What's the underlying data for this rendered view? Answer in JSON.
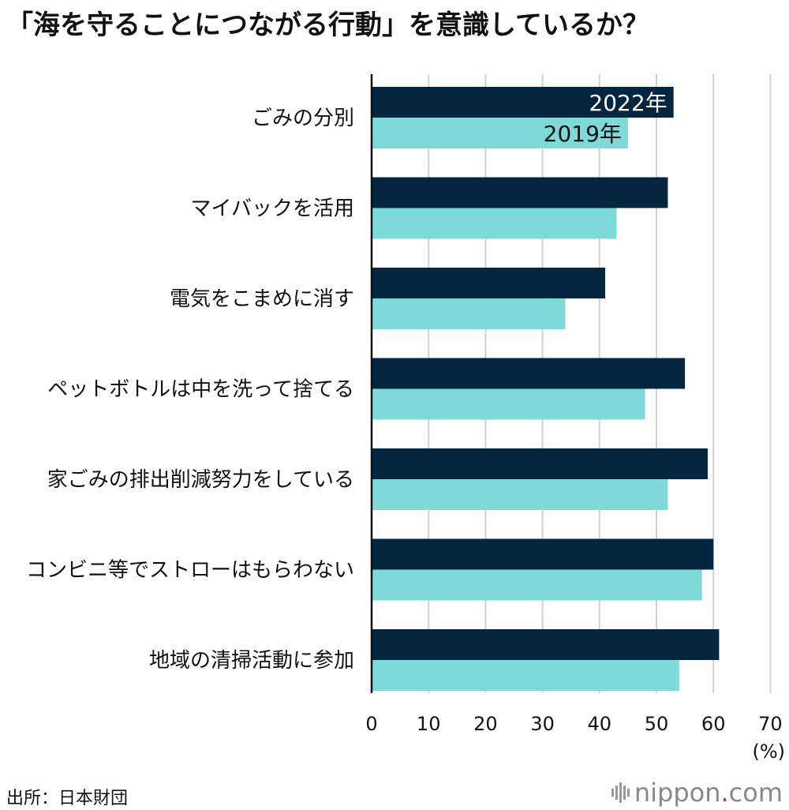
{
  "title": "「海を守ることにつながる行動」を意識しているか？",
  "source": "出所：日本財団",
  "logo": {
    "brand": "nippon",
    "dot": ".",
    "suffix": "com"
  },
  "colors": {
    "series_2022": "#042640",
    "series_2019": "#7ddad8",
    "grid": "#d0d0d0",
    "axis": "#111111"
  },
  "chart_data": {
    "type": "bar",
    "orientation": "horizontal",
    "title": "「海を守ることにつながる行動」を意識しているか？",
    "categories": [
      "ごみの分別",
      "マイバックを活用",
      "電気をこまめに消す",
      "ペットボトルは中を洗って捨てる",
      "家ごみの排出削減努力をしている",
      "コンビニ等でストローはもらわない",
      "地域の清掃活動に参加"
    ],
    "series": [
      {
        "name": "2022年",
        "values": [
          53,
          52,
          41,
          55,
          59,
          60,
          61
        ]
      },
      {
        "name": "2019年",
        "values": [
          45,
          43,
          34,
          48,
          52,
          58,
          54
        ]
      }
    ],
    "xlim": [
      0,
      70
    ],
    "xticks": [
      0,
      10,
      20,
      30,
      40,
      50,
      60,
      70
    ],
    "xunit": "(%)",
    "grid": true,
    "legend": "inline-first-bars"
  }
}
